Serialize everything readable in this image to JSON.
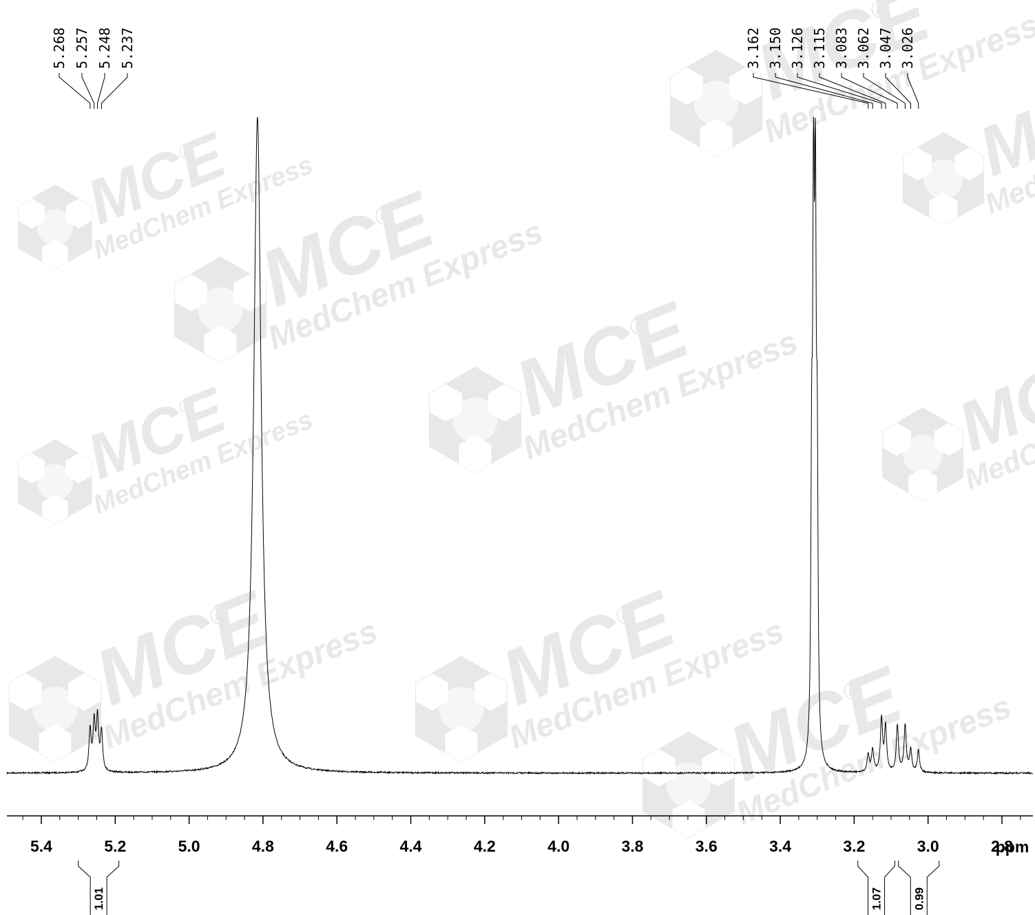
{
  "chart_data": {
    "type": "line",
    "title": "",
    "xlabel": "ppm",
    "ylabel": "",
    "x_reversed": true,
    "xlim": [
      5.5,
      2.7
    ],
    "x_ticks": [
      "5.4",
      "5.2",
      "5.0",
      "4.8",
      "4.6",
      "4.4",
      "4.2",
      "4.0",
      "3.8",
      "3.6",
      "3.4",
      "3.2",
      "3.0",
      "2.8"
    ],
    "x_tick_values": [
      5.4,
      5.2,
      5.0,
      4.8,
      4.6,
      4.4,
      4.2,
      4.0,
      3.8,
      3.6,
      3.4,
      3.2,
      3.0,
      2.8
    ],
    "minor_tick_step": 0.05,
    "peak_labels_left": [
      "5.268",
      "5.257",
      "5.248",
      "5.237"
    ],
    "peak_labels_right": [
      "3.162",
      "3.150",
      "3.126",
      "3.115",
      "3.083",
      "3.062",
      "3.047",
      "3.026"
    ],
    "peaks": [
      {
        "ppm": 5.268,
        "height": 0.063
      },
      {
        "ppm": 5.257,
        "height": 0.072
      },
      {
        "ppm": 5.248,
        "height": 0.08
      },
      {
        "ppm": 5.237,
        "height": 0.061
      },
      {
        "ppm": 4.815,
        "height": 1.0,
        "clipped": true,
        "width": 0.012
      },
      {
        "ppm": 3.315,
        "height": 0.4,
        "width": 0.0025
      },
      {
        "ppm": 3.31,
        "height": 0.78,
        "width": 0.0025
      },
      {
        "ppm": 3.305,
        "height": 0.78,
        "width": 0.0025
      },
      {
        "ppm": 3.3,
        "height": 0.4,
        "width": 0.0025
      },
      {
        "ppm": 3.162,
        "height": 0.027
      },
      {
        "ppm": 3.15,
        "height": 0.034
      },
      {
        "ppm": 3.126,
        "height": 0.08
      },
      {
        "ppm": 3.115,
        "height": 0.068
      },
      {
        "ppm": 3.083,
        "height": 0.072
      },
      {
        "ppm": 3.062,
        "height": 0.072
      },
      {
        "ppm": 3.047,
        "height": 0.034
      },
      {
        "ppm": 3.026,
        "height": 0.034
      }
    ],
    "integrals": [
      {
        "label": "1.01",
        "from": 5.3,
        "to": 5.19
      },
      {
        "label": "1.07",
        "from": 3.19,
        "to": 3.09
      },
      {
        "label": "0.99",
        "from": 3.08,
        "to": 2.97
      }
    ]
  },
  "watermark": {
    "brand": "MCE",
    "text": "MedChem Express",
    "mark": "®",
    "color": "#e8e8e8"
  }
}
